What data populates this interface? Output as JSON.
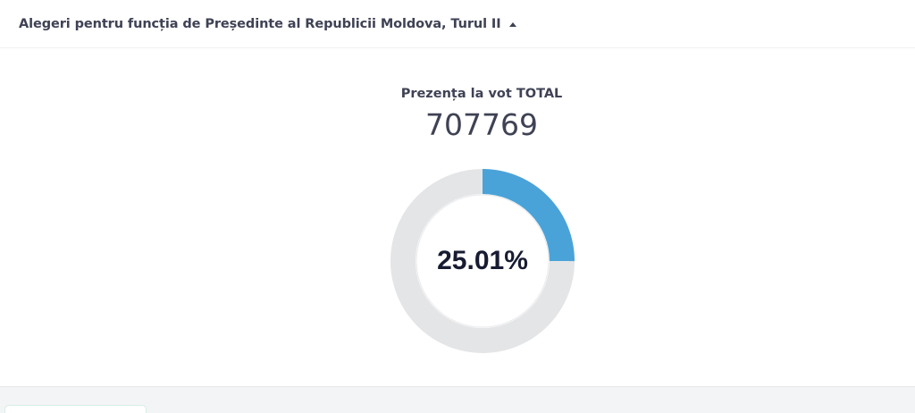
{
  "header": {
    "title": "Alegeri pentru funcția de Președinte al Republicii Moldova, Turul II",
    "toggle_icon": "caret-up-icon"
  },
  "turnout": {
    "label": "Prezența la vot TOTAL",
    "count": "707769",
    "percent_label": "25.01%",
    "percent_value": 25.01
  },
  "colors": {
    "progress": "#4aa3d8",
    "track": "#e4e5e7",
    "text": "#3f4254",
    "percent_text": "#181c32"
  }
}
